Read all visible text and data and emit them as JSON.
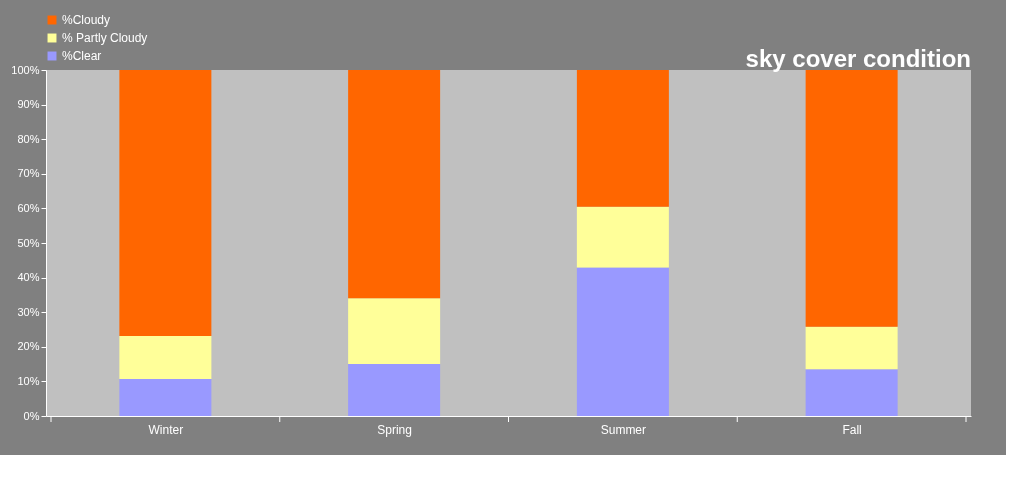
{
  "chart_data": {
    "type": "bar",
    "title": "sky cover condition",
    "stacked": true,
    "categories": [
      "Winter",
      "Spring",
      "Summer",
      "Fall"
    ],
    "series": [
      {
        "name": "%Clear",
        "color": "#9999ff",
        "values": [
          10.7,
          15.0,
          42.9,
          13.5
        ]
      },
      {
        "name": "% Partly Cloudy",
        "color": "#ffff99",
        "values": [
          12.4,
          19.0,
          17.6,
          12.3
        ]
      },
      {
        "name": "%Cloudy",
        "color": "#ff6600",
        "values": [
          76.9,
          66.0,
          39.5,
          74.2
        ]
      }
    ],
    "ylim": [
      0,
      100
    ],
    "yticks": [
      {
        "value": 0,
        "label": "0%"
      },
      {
        "value": 10,
        "label": "10%"
      },
      {
        "value": 20,
        "label": "20%"
      },
      {
        "value": 30,
        "label": "30%"
      },
      {
        "value": 40,
        "label": "40%"
      },
      {
        "value": 50,
        "label": "50%"
      },
      {
        "value": 60,
        "label": "60%"
      },
      {
        "value": 70,
        "label": "70%"
      },
      {
        "value": 80,
        "label": "80%"
      },
      {
        "value": 90,
        "label": "90%"
      },
      {
        "value": 100,
        "label": "100%"
      }
    ],
    "grid": false,
    "legend": "top left"
  }
}
